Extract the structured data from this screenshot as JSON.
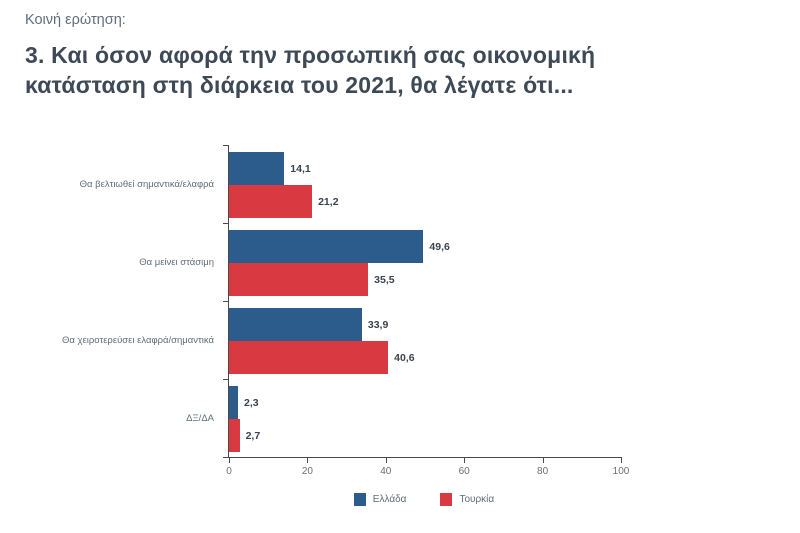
{
  "header": {
    "kicker": "Κοινή ερώτηση:",
    "title": "3. Και όσον αφορά την προσωπική σας οικονομική κατάσταση στη διάρκεια του 2021, θα λέγατε ότι..."
  },
  "chart_data": {
    "type": "bar",
    "orientation": "horizontal",
    "title": "3. Και όσον αφορά την προσωπική σας οικονομική κατάσταση στη διάρκεια του 2021, θα λέγατε ότι...",
    "categories": [
      "Θα βελτιωθεί σημαντικά/ελαφρά",
      "Θα μείνει στάσιμη",
      "Θα χειροτερεύσει ελαφρά/σημαντικά",
      "ΔΞ/ΔΑ"
    ],
    "series": [
      {
        "name": "Ελλάδα",
        "color": "#2b5c8b",
        "values": [
          14.1,
          49.6,
          33.9,
          2.3
        ],
        "value_labels": [
          "14,1",
          "49,6",
          "33,9",
          "2,3"
        ]
      },
      {
        "name": "Τουρκία",
        "color": "#d93940",
        "values": [
          21.2,
          35.5,
          40.6,
          2.7
        ],
        "value_labels": [
          "21,2",
          "35,5",
          "40,6",
          "2,7"
        ]
      }
    ],
    "xlim": [
      0,
      100
    ],
    "x_ticks": [
      "0",
      "20",
      "40",
      "60",
      "80",
      "100"
    ],
    "xlabel": "",
    "ylabel": "",
    "grid": false,
    "legend_position": "bottom"
  }
}
